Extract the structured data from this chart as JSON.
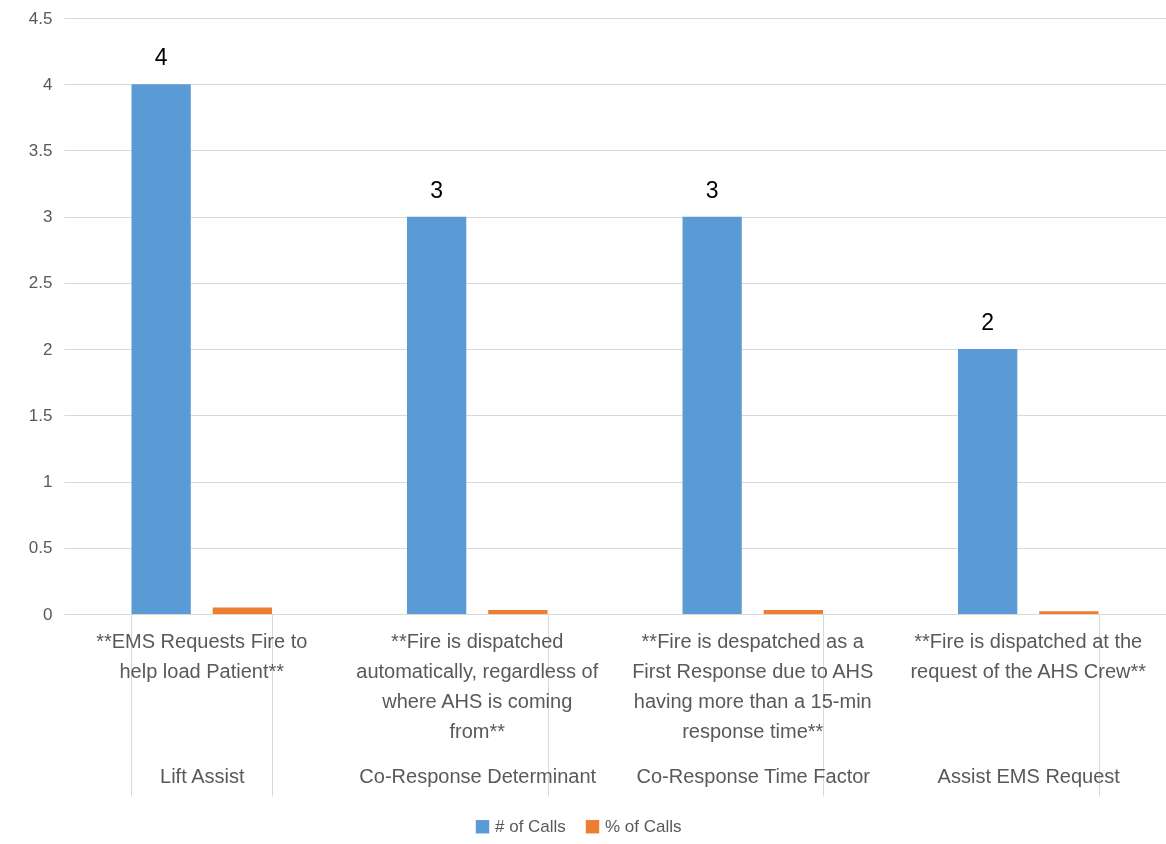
{
  "chart_data": {
    "type": "bar",
    "categories": [
      "Lift Assist",
      "Co-Response Determinant",
      "Co-Response Time Factor",
      "Assist EMS Request"
    ],
    "annotations": [
      "**EMS Requests Fire to help load Patient**",
      "**Fire is dispatched automatically, regardless of where AHS is coming from**",
      "**Fire is despatched as a First Response due to AHS having more than a 15-min response time**",
      "**Fire is dispatched at the request of the AHS Crew**"
    ],
    "series": [
      {
        "name": "# of Calls",
        "color": "#5b9bd5",
        "values": [
          4,
          3,
          3,
          2
        ],
        "value_labels": [
          "4",
          "3",
          "3",
          "2"
        ]
      },
      {
        "name": "% of Calls",
        "color": "#ed7d31",
        "values": [
          0.05,
          0.03,
          0.03,
          0.02
        ]
      }
    ],
    "ylim": [
      0,
      4.5
    ],
    "yticks": [
      0,
      0.5,
      1,
      1.5,
      2,
      2.5,
      3,
      3.5,
      4,
      4.5
    ],
    "grid": "y",
    "legend": "bottom"
  }
}
